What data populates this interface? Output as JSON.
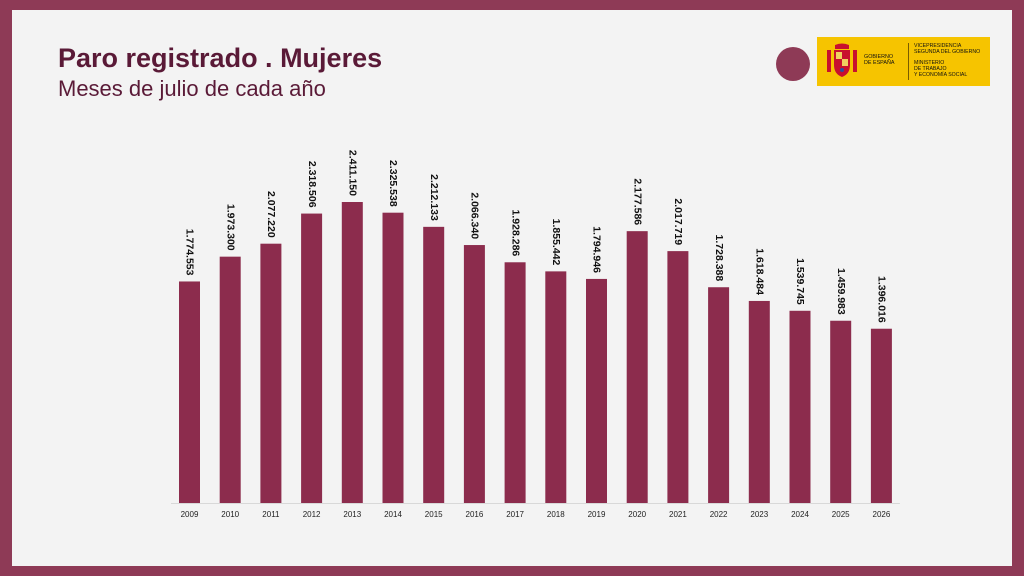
{
  "header": {
    "title": "Paro registrado . Mujeres",
    "subtitle": "Meses de julio de cada año"
  },
  "logo": {
    "gobierno": "GOBIERNO\nDE ESPAÑA",
    "vicepresidencia": "VICEPRESIDENCIA\nSEGUNDA DEL GOBIERNO",
    "ministerio": "MINISTERIO\nDE TRABAJO\nY ECONOMÍA SOCIAL"
  },
  "colors": {
    "background_frame": "#8e3a56",
    "bar": "#8c2c4d",
    "title": "#5a1a37",
    "logo_yellow": "#f6c400"
  },
  "chart_data": {
    "type": "bar",
    "title": "Paro registrado . Mujeres",
    "subtitle": "Meses de julio de cada año",
    "categories": [
      "2009",
      "2010",
      "2011",
      "2012",
      "2013",
      "2014",
      "2015",
      "2016",
      "2017",
      "2018",
      "2019",
      "2020",
      "2021",
      "2022",
      "2023",
      "2024",
      "2025",
      "2026"
    ],
    "values": [
      1774553,
      1973300,
      2077220,
      2318506,
      2411150,
      2325538,
      2212133,
      2066340,
      1928286,
      1855442,
      1794946,
      2177586,
      2017719,
      1728388,
      1618484,
      1539745,
      1459983,
      1396016
    ],
    "labels": [
      "1.774.553",
      "1.973.300",
      "2.077.220",
      "2.318.506",
      "2.411.150",
      "2.325.538",
      "2.212.133",
      "2.066.340",
      "1.928.286",
      "1.855.442",
      "1.794.946",
      "2.177.586",
      "2.017.719",
      "1.728.388",
      "1.618.484",
      "1.539.745",
      "1.459.983",
      "1.396.016"
    ],
    "ylim": [
      0,
      2411150
    ],
    "grid": false,
    "legend": "none"
  }
}
